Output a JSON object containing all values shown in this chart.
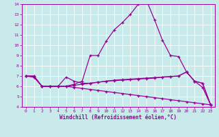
{
  "background_color": "#c8eaea",
  "line_color": "#990099",
  "grid_color": "#aadddd",
  "xlabel": "Windchill (Refroidissement éolien,°C)",
  "xlim": [
    -0.5,
    23.5
  ],
  "ylim": [
    4,
    14
  ],
  "yticks": [
    4,
    5,
    6,
    7,
    8,
    9,
    10,
    11,
    12,
    13,
    14
  ],
  "xticks": [
    0,
    1,
    2,
    3,
    4,
    5,
    6,
    7,
    8,
    9,
    10,
    11,
    12,
    13,
    14,
    15,
    16,
    17,
    18,
    19,
    20,
    21,
    22,
    23
  ],
  "lines": [
    {
      "x": [
        0,
        1,
        2,
        3,
        4,
        5,
        6,
        7,
        8,
        9,
        10,
        11,
        12,
        13,
        14,
        15,
        16,
        17,
        18,
        19,
        20,
        21,
        22,
        23
      ],
      "y": [
        7.0,
        6.9,
        6.0,
        6.0,
        6.0,
        6.0,
        5.9,
        5.8,
        5.7,
        5.6,
        5.5,
        5.4,
        5.3,
        5.2,
        5.1,
        5.0,
        4.9,
        4.8,
        4.7,
        4.6,
        4.5,
        4.4,
        4.3,
        4.2
      ]
    },
    {
      "x": [
        0,
        1,
        2,
        3,
        4,
        5,
        6,
        7,
        8,
        9,
        10,
        11,
        12,
        13,
        14,
        15,
        16,
        17,
        18,
        19,
        20,
        21,
        22,
        23
      ],
      "y": [
        7.0,
        6.9,
        6.0,
        6.0,
        6.0,
        6.0,
        6.2,
        6.5,
        9.0,
        9.0,
        10.4,
        11.5,
        12.2,
        13.0,
        14.0,
        14.4,
        12.5,
        10.5,
        9.0,
        8.9,
        7.4,
        6.5,
        5.9,
        4.2
      ]
    },
    {
      "x": [
        0,
        1,
        2,
        3,
        4,
        5,
        6,
        7,
        8,
        9,
        10,
        11,
        12,
        13,
        14,
        15,
        16,
        17,
        18,
        19,
        20,
        21,
        22,
        23
      ],
      "y": [
        7.0,
        7.0,
        6.0,
        6.0,
        6.0,
        6.0,
        6.1,
        6.2,
        6.3,
        6.4,
        6.5,
        6.55,
        6.6,
        6.65,
        6.7,
        6.75,
        6.8,
        6.9,
        6.95,
        7.0,
        7.4,
        6.5,
        6.3,
        4.2
      ]
    },
    {
      "x": [
        0,
        1,
        2,
        3,
        4,
        5,
        6,
        7,
        8,
        9,
        10,
        11,
        12,
        13,
        14,
        15,
        16,
        17,
        18,
        19,
        20,
        21,
        22,
        23
      ],
      "y": [
        7.0,
        7.0,
        6.0,
        6.0,
        6.0,
        6.9,
        6.5,
        6.3,
        6.3,
        6.4,
        6.5,
        6.6,
        6.65,
        6.7,
        6.75,
        6.8,
        6.85,
        6.9,
        6.95,
        7.0,
        7.4,
        6.5,
        6.3,
        4.2
      ]
    }
  ]
}
